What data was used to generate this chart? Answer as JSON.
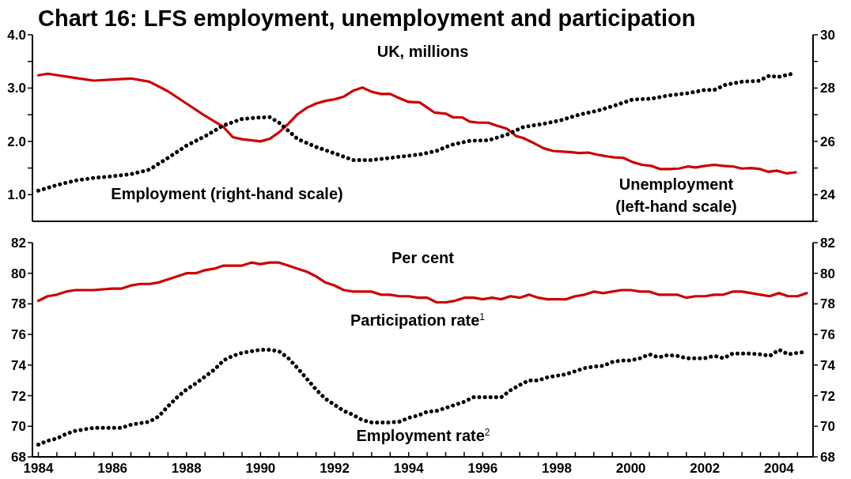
{
  "chart_data": [
    {
      "type": "line",
      "title": "Chart 16:  LFS employment, unemployment and participation",
      "subtitle": "UK, millions",
      "xlim": [
        1983.84,
        2004.92
      ],
      "ylim": [
        0.5,
        4.0
      ],
      "yticks": [
        {
          "value": 1,
          "label": "1.0"
        },
        {
          "value": 1.5,
          "label": null
        },
        {
          "value": 2,
          "label": "2.0"
        },
        {
          "value": 2.5,
          "label": null
        },
        {
          "value": 3,
          "label": "3.0"
        },
        {
          "value": 3.5,
          "label": null
        },
        {
          "value": 4,
          "label": "4.0"
        }
      ],
      "y2lim": [
        23,
        30
      ],
      "y2ticks": [
        {
          "value": 23,
          "label": null
        },
        24,
        {
          "value": 25,
          "label": null
        },
        26,
        {
          "value": 27,
          "label": null
        },
        28,
        {
          "value": 29,
          "label": null
        },
        30
      ],
      "tick_labels": "y",
      "grid": false,
      "legend": false,
      "marker": "none",
      "series": [
        {
          "name": "Unemployment\n(left-hand scale)",
          "color": "#cc0000",
          "line_style": "solid",
          "x": [
            1984,
            1984.25,
            1985,
            1985.5,
            1986,
            1986.5,
            1987,
            1987.5,
            1988,
            1988.5,
            1989,
            1989.25,
            1989.5,
            1990,
            1990.25,
            1990.5,
            1990.75,
            1991,
            1991.25,
            1991.5,
            1991.75,
            1992,
            1992.25,
            1992.5,
            1992.75,
            1993,
            1993.25,
            1993.5,
            1993.75,
            1994,
            1994.3,
            1994.7,
            1995,
            1995.2,
            1995.45,
            1995.65,
            1995.9,
            1996.15,
            1996.4,
            1996.65,
            1996.9,
            1997.1,
            1997.4,
            1997.65,
            1997.9,
            1998.35,
            1998.6,
            1998.85,
            1999.1,
            1999.35,
            1999.55,
            1999.8,
            2000.05,
            2000.3,
            2000.55,
            2000.8,
            2001.05,
            2001.3,
            2001.55,
            2001.75,
            2002,
            2002.25,
            2002.5,
            2002.75,
            2003,
            2003.25,
            2003.5,
            2003.7,
            2003.95,
            2004.2,
            2004.45
          ],
          "values": [
            3.24,
            3.27,
            3.19,
            3.14,
            3.16,
            3.18,
            3.12,
            2.94,
            2.71,
            2.48,
            2.27,
            2.08,
            2.04,
            2.0,
            2.05,
            2.17,
            2.33,
            2.51,
            2.63,
            2.71,
            2.76,
            2.79,
            2.84,
            2.95,
            3.01,
            2.93,
            2.89,
            2.89,
            2.81,
            2.74,
            2.73,
            2.54,
            2.52,
            2.45,
            2.45,
            2.37,
            2.35,
            2.35,
            2.29,
            2.24,
            2.1,
            2.06,
            1.96,
            1.87,
            1.82,
            1.8,
            1.78,
            1.79,
            1.75,
            1.72,
            1.7,
            1.69,
            1.61,
            1.56,
            1.54,
            1.48,
            1.48,
            1.49,
            1.53,
            1.51,
            1.54,
            1.56,
            1.54,
            1.53,
            1.49,
            1.5,
            1.48,
            1.43,
            1.45,
            1.4,
            1.42
          ]
        },
        {
          "name": "Employment (right-hand scale)",
          "color": "#000000",
          "line_style": "dotted",
          "axis": "y2",
          "x": [
            1984,
            1984.5,
            1985,
            1985.5,
            1986,
            1986.5,
            1987,
            1987.5,
            1988,
            1988.5,
            1989,
            1989.5,
            1990,
            1990.25,
            1990.5,
            1990.75,
            1991,
            1991.5,
            1992,
            1992.5,
            1993,
            1993.5,
            1994.3,
            1994.75,
            1995.15,
            1995.65,
            1996.15,
            1996.65,
            1997.1,
            1997.65,
            1998.1,
            1998.6,
            1999.1,
            1999.55,
            2000.05,
            2000.55,
            2001,
            2001.55,
            2002,
            2002.25,
            2002.55,
            2003,
            2003.45,
            2003.75,
            2003.95,
            2004.4
          ],
          "values": [
            24.15,
            24.36,
            24.53,
            24.63,
            24.69,
            24.77,
            24.94,
            25.38,
            25.84,
            26.19,
            26.6,
            26.84,
            26.9,
            26.91,
            26.7,
            26.4,
            26.09,
            25.79,
            25.55,
            25.3,
            25.3,
            25.38,
            25.51,
            25.64,
            25.87,
            26.02,
            26.04,
            26.25,
            26.54,
            26.66,
            26.79,
            27.0,
            27.15,
            27.34,
            27.57,
            27.6,
            27.72,
            27.81,
            27.93,
            27.93,
            28.12,
            28.24,
            28.27,
            28.47,
            28.41,
            28.55
          ]
        }
      ]
    },
    {
      "type": "line",
      "subtitle": "Per cent",
      "xlim": [
        1983.84,
        2004.92
      ],
      "ylim": [
        68,
        82
      ],
      "yticks": [
        68,
        70,
        72,
        74,
        76,
        78,
        80,
        82
      ],
      "y2lim": [
        68,
        82
      ],
      "y2ticks": [
        68,
        70,
        72,
        74,
        76,
        78,
        80,
        82
      ],
      "xticks": [
        1984,
        {
          "value": 1984.5,
          "label": null
        },
        {
          "value": 1985,
          "label": null
        },
        {
          "value": 1985.5,
          "label": null
        },
        1986,
        {
          "value": 1986.5,
          "label": null
        },
        {
          "value": 1987,
          "label": null
        },
        {
          "value": 1987.5,
          "label": null
        },
        1988,
        {
          "value": 1988.5,
          "label": null
        },
        {
          "value": 1989,
          "label": null
        },
        {
          "value": 1989.5,
          "label": null
        },
        1990,
        {
          "value": 1990.5,
          "label": null
        },
        {
          "value": 1991,
          "label": null
        },
        {
          "value": 1991.5,
          "label": null
        },
        1992,
        {
          "value": 1992.5,
          "label": null
        },
        {
          "value": 1993,
          "label": null
        },
        {
          "value": 1993.5,
          "label": null
        },
        1994,
        {
          "value": 1994.5,
          "label": null
        },
        {
          "value": 1995,
          "label": null
        },
        {
          "value": 1995.5,
          "label": null
        },
        1996,
        {
          "value": 1996.5,
          "label": null
        },
        {
          "value": 1997,
          "label": null
        },
        {
          "value": 1997.5,
          "label": null
        },
        1998,
        {
          "value": 1998.5,
          "label": null
        },
        {
          "value": 1999,
          "label": null
        },
        {
          "value": 1999.5,
          "label": null
        },
        2000,
        {
          "value": 2000.5,
          "label": null
        },
        {
          "value": 2001,
          "label": null
        },
        {
          "value": 2001.5,
          "label": null
        },
        2002,
        {
          "value": 2002.5,
          "label": null
        },
        {
          "value": 2003,
          "label": null
        },
        {
          "value": 2003.5,
          "label": null
        },
        2004,
        {
          "value": 2004.5,
          "label": null
        }
      ],
      "grid": false,
      "legend": false,
      "marker": "none",
      "series": [
        {
          "name": "Participation rate$^{1}$",
          "color": "#cc0000",
          "line_style": "solid",
          "x": [
            1984,
            1984.25,
            1984.5,
            1984.75,
            1985,
            1985.5,
            1986,
            1986.25,
            1986.5,
            1986.75,
            1987,
            1987.25,
            1987.5,
            1988,
            1988.25,
            1988.5,
            1988.75,
            1989,
            1989.5,
            1989.75,
            1990,
            1990.25,
            1990.5,
            1990.75,
            1991,
            1991.25,
            1991.5,
            1991.75,
            1992,
            1992.25,
            1992.5,
            1993,
            1993.25,
            1993.5,
            1993.75,
            1994,
            1994.25,
            1994.5,
            1994.75,
            1995,
            1995.25,
            1995.5,
            1995.75,
            1996,
            1996.25,
            1996.5,
            1996.75,
            1997,
            1997.25,
            1997.5,
            1997.75,
            1998.25,
            1998.5,
            1998.75,
            1999,
            1999.25,
            1999.5,
            1999.75,
            2000,
            2000.25,
            2000.5,
            2000.75,
            2001.25,
            2001.5,
            2001.75,
            2002,
            2002.25,
            2002.5,
            2002.75,
            2003,
            2003.25,
            2003.5,
            2003.75,
            2004,
            2004.25,
            2004.5,
            2004.75
          ],
          "values": [
            78.2,
            78.5,
            78.6,
            78.8,
            78.9,
            78.9,
            79.0,
            79.0,
            79.2,
            79.3,
            79.3,
            79.4,
            79.6,
            80.0,
            80.0,
            80.2,
            80.3,
            80.5,
            80.5,
            80.7,
            80.6,
            80.7,
            80.7,
            80.5,
            80.3,
            80.1,
            79.8,
            79.4,
            79.2,
            78.9,
            78.8,
            78.8,
            78.6,
            78.6,
            78.5,
            78.5,
            78.4,
            78.4,
            78.1,
            78.1,
            78.2,
            78.4,
            78.4,
            78.3,
            78.4,
            78.3,
            78.5,
            78.4,
            78.6,
            78.4,
            78.3,
            78.3,
            78.5,
            78.6,
            78.8,
            78.7,
            78.8,
            78.9,
            78.9,
            78.8,
            78.8,
            78.6,
            78.6,
            78.4,
            78.5,
            78.5,
            78.6,
            78.6,
            78.8,
            78.8,
            78.7,
            78.6,
            78.5,
            78.7,
            78.5,
            78.5,
            78.7
          ]
        },
        {
          "name": "Employment rate$^{2}$",
          "color": "#000000",
          "line_style": "dotted",
          "x": [
            1984,
            1984.25,
            1984.5,
            1984.75,
            1985,
            1985.25,
            1985.5,
            1986,
            1986.25,
            1986.5,
            1986.75,
            1987,
            1987.25,
            1987.5,
            1987.75,
            1988,
            1988.25,
            1988.5,
            1988.75,
            1989,
            1989.25,
            1989.5,
            1989.75,
            1990,
            1990.25,
            1990.5,
            1990.75,
            1991,
            1991.25,
            1991.5,
            1991.75,
            1992,
            1992.25,
            1992.5,
            1992.75,
            1993,
            1993.5,
            1993.75,
            1994,
            1994.25,
            1994.5,
            1994.75,
            1995,
            1995.25,
            1995.5,
            1995.75,
            1996,
            1996.5,
            1996.75,
            1997,
            1997.25,
            1997.5,
            1997.75,
            1998,
            1998.25,
            1998.5,
            1998.75,
            1999,
            1999.25,
            1999.5,
            1999.75,
            2000,
            2000.25,
            2000.5,
            2000.75,
            2001,
            2001.25,
            2001.5,
            2002,
            2002.25,
            2002.5,
            2002.75,
            2003,
            2003.25,
            2003.5,
            2003.75,
            2004,
            2004.25,
            2004.5,
            2004.66
          ],
          "values": [
            68.8,
            69.05,
            69.2,
            69.5,
            69.7,
            69.8,
            69.9,
            69.9,
            69.9,
            70.1,
            70.2,
            70.3,
            70.65,
            71.3,
            71.9,
            72.4,
            72.8,
            73.25,
            73.7,
            74.3,
            74.6,
            74.8,
            74.9,
            75.0,
            75.0,
            74.9,
            74.45,
            73.8,
            73.1,
            72.4,
            71.8,
            71.4,
            71.0,
            70.75,
            70.4,
            70.25,
            70.25,
            70.3,
            70.55,
            70.7,
            70.95,
            71.0,
            71.2,
            71.4,
            71.6,
            71.9,
            71.9,
            71.9,
            72.35,
            72.7,
            73.0,
            73.0,
            73.2,
            73.3,
            73.4,
            73.6,
            73.8,
            73.9,
            73.95,
            74.2,
            74.3,
            74.3,
            74.45,
            74.7,
            74.5,
            74.65,
            74.6,
            74.45,
            74.45,
            74.6,
            74.45,
            74.75,
            74.75,
            74.75,
            74.7,
            74.6,
            75.0,
            74.7,
            74.8,
            74.85
          ]
        }
      ]
    }
  ]
}
